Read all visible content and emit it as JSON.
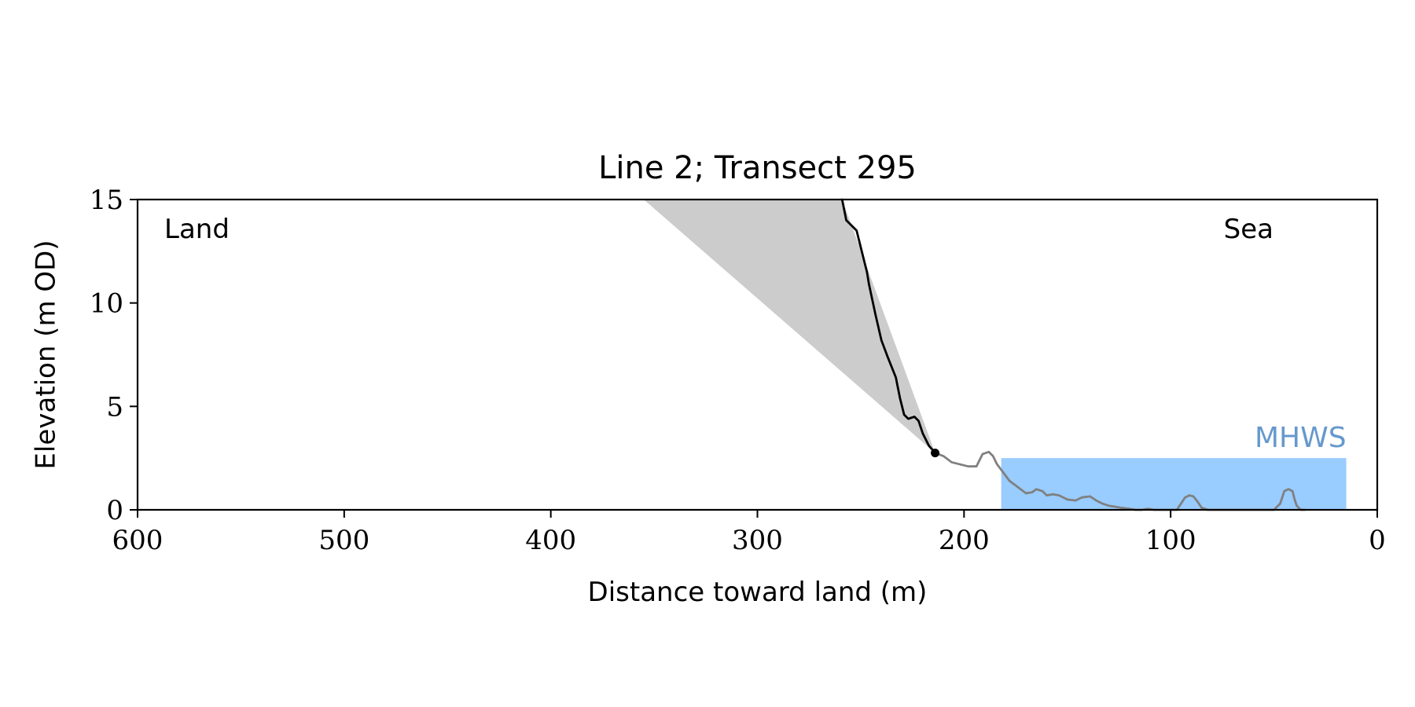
{
  "chart_data": {
    "type": "line",
    "title": "Line 2; Transect 295",
    "xlabel": "Distance toward land (m)",
    "ylabel": "Elevation (m OD)",
    "xlim": [
      600,
      0
    ],
    "ylim": [
      0,
      15
    ],
    "x_ticks": [
      600,
      500,
      400,
      300,
      200,
      100,
      0
    ],
    "y_ticks": [
      0,
      5,
      10,
      15
    ],
    "grid": false,
    "annotations": {
      "land": "Land",
      "sea": "Sea",
      "mhws": "MHWS"
    },
    "colors": {
      "cliff": "#000000",
      "beach": "#808080",
      "wedge": "#cccccc",
      "sea": "#99ccff",
      "mhws_text": "#6699cc"
    },
    "mhws": {
      "level": 2.5,
      "x_range": [
        182,
        15
      ]
    },
    "shaded_wedge": {
      "points": [
        [
          355,
          15
        ],
        [
          259,
          15
        ],
        [
          214,
          2.75
        ]
      ]
    },
    "toe_point": {
      "x": 214,
      "y": 2.75
    },
    "series": [
      {
        "role": "cliff",
        "x": [
          259,
          257,
          252,
          250,
          247,
          246,
          243,
          240,
          237,
          235,
          233,
          231,
          229,
          227,
          224,
          222,
          220,
          217,
          214
        ],
        "y": [
          15,
          14.0,
          13.5,
          12.7,
          11.5,
          10.9,
          9.5,
          8.2,
          7.4,
          6.9,
          6.4,
          5.4,
          4.6,
          4.4,
          4.5,
          4.3,
          3.7,
          3.1,
          2.75
        ]
      },
      {
        "role": "beach",
        "x": [
          214,
          210,
          206,
          202,
          198,
          194,
          191,
          188,
          186,
          184,
          181,
          178,
          174,
          170,
          167,
          165,
          162,
          160,
          157,
          154,
          150,
          146,
          143,
          139,
          136,
          133,
          130,
          127,
          124,
          120,
          117,
          114,
          111,
          108,
          104,
          100,
          97,
          95,
          93,
          91,
          89,
          87,
          85,
          82,
          79,
          75,
          71,
          68,
          65,
          62,
          59,
          56,
          53,
          50,
          47,
          45,
          43,
          41,
          40,
          39,
          37,
          35
        ],
        "y": [
          2.75,
          2.6,
          2.3,
          2.2,
          2.1,
          2.1,
          2.7,
          2.8,
          2.6,
          2.2,
          1.8,
          1.4,
          1.1,
          0.8,
          0.85,
          1.0,
          0.9,
          0.7,
          0.75,
          0.7,
          0.5,
          0.45,
          0.6,
          0.65,
          0.45,
          0.3,
          0.2,
          0.15,
          0.1,
          0.05,
          0.0,
          0.0,
          0.05,
          0.0,
          0.0,
          0.0,
          0.0,
          0.3,
          0.6,
          0.7,
          0.65,
          0.4,
          0.1,
          0.0,
          0.0,
          0.0,
          0.0,
          0.0,
          0.0,
          0.0,
          0.0,
          0.0,
          0.0,
          0.0,
          0.3,
          0.9,
          1.0,
          0.9,
          0.5,
          0.2,
          0.0,
          0.0
        ]
      }
    ]
  }
}
